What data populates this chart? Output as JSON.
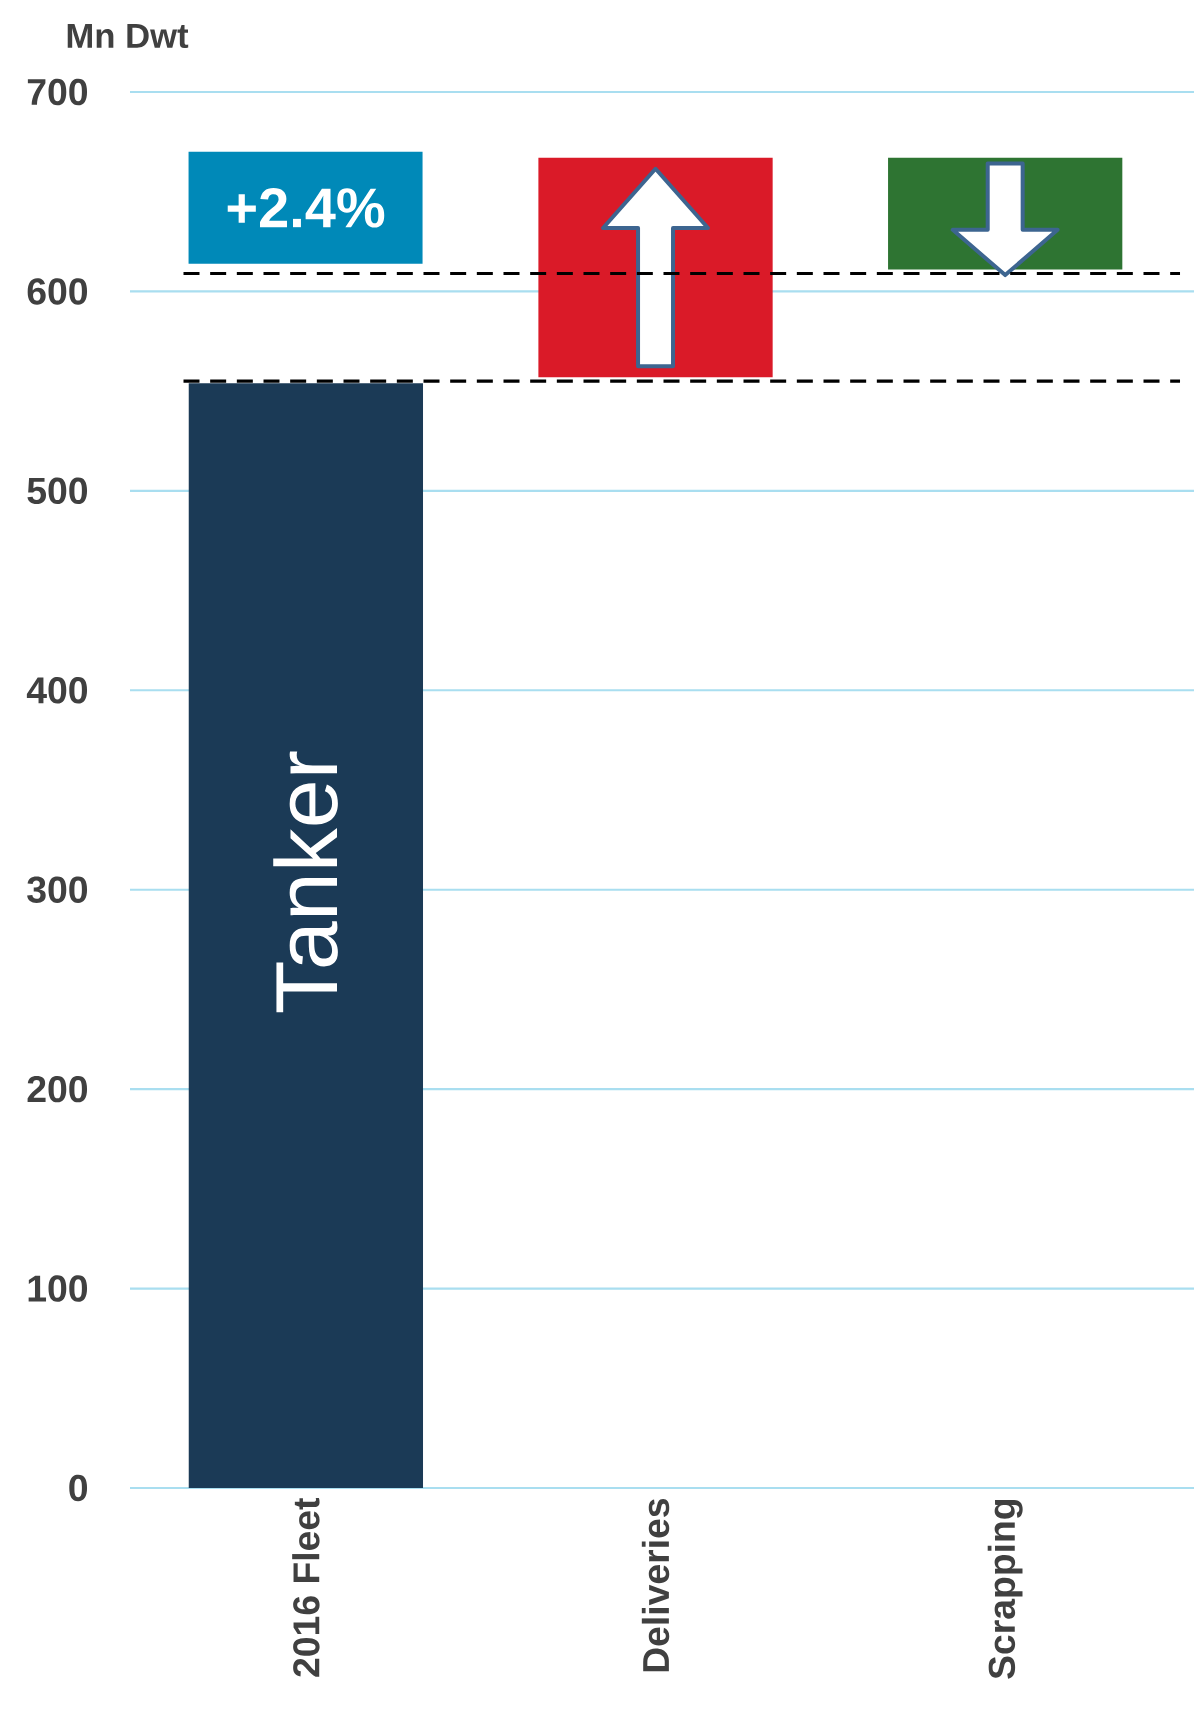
{
  "chart_data": {
    "type": "bar",
    "ylabel": "Mn Dwt",
    "categories": [
      "2016 Fleet",
      "Deliveries",
      "Scrapping"
    ],
    "values": [
      554,
      110,
      56
    ],
    "base": [
      0,
      557,
      611
    ],
    "colors": [
      "#1b3a56",
      "#da1a28",
      "#2e7432"
    ],
    "ylim": [
      0,
      700
    ],
    "yticks": [
      0,
      100,
      200,
      300,
      400,
      500,
      600,
      700
    ],
    "grid": "y",
    "ref_lines": [
      {
        "axis": "y",
        "value": 609,
        "color": "#000000",
        "line_style": "dashed"
      },
      {
        "axis": "y",
        "value": 555,
        "color": "#000000",
        "line_style": "dashed"
      }
    ],
    "annotations": [
      "+2.4%",
      "Tanker"
    ]
  }
}
